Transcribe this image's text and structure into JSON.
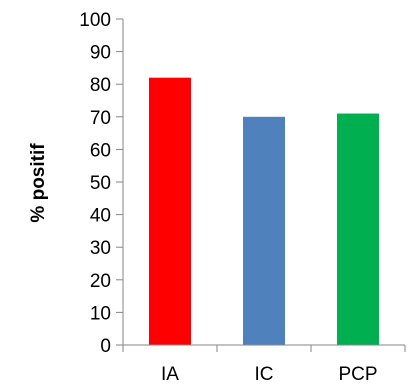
{
  "chart_data": {
    "type": "bar",
    "title": "",
    "xlabel": "",
    "ylabel": "% positif",
    "categories": [
      "IA",
      "IC",
      "PCP"
    ],
    "values": [
      82,
      70,
      71
    ],
    "colors": [
      "#ff0000",
      "#4f81bd",
      "#00b050"
    ],
    "ylim": [
      0,
      100
    ],
    "yticks": [
      0,
      10,
      20,
      30,
      40,
      50,
      60,
      70,
      80,
      90,
      100
    ],
    "grid": false,
    "legend": "none"
  }
}
